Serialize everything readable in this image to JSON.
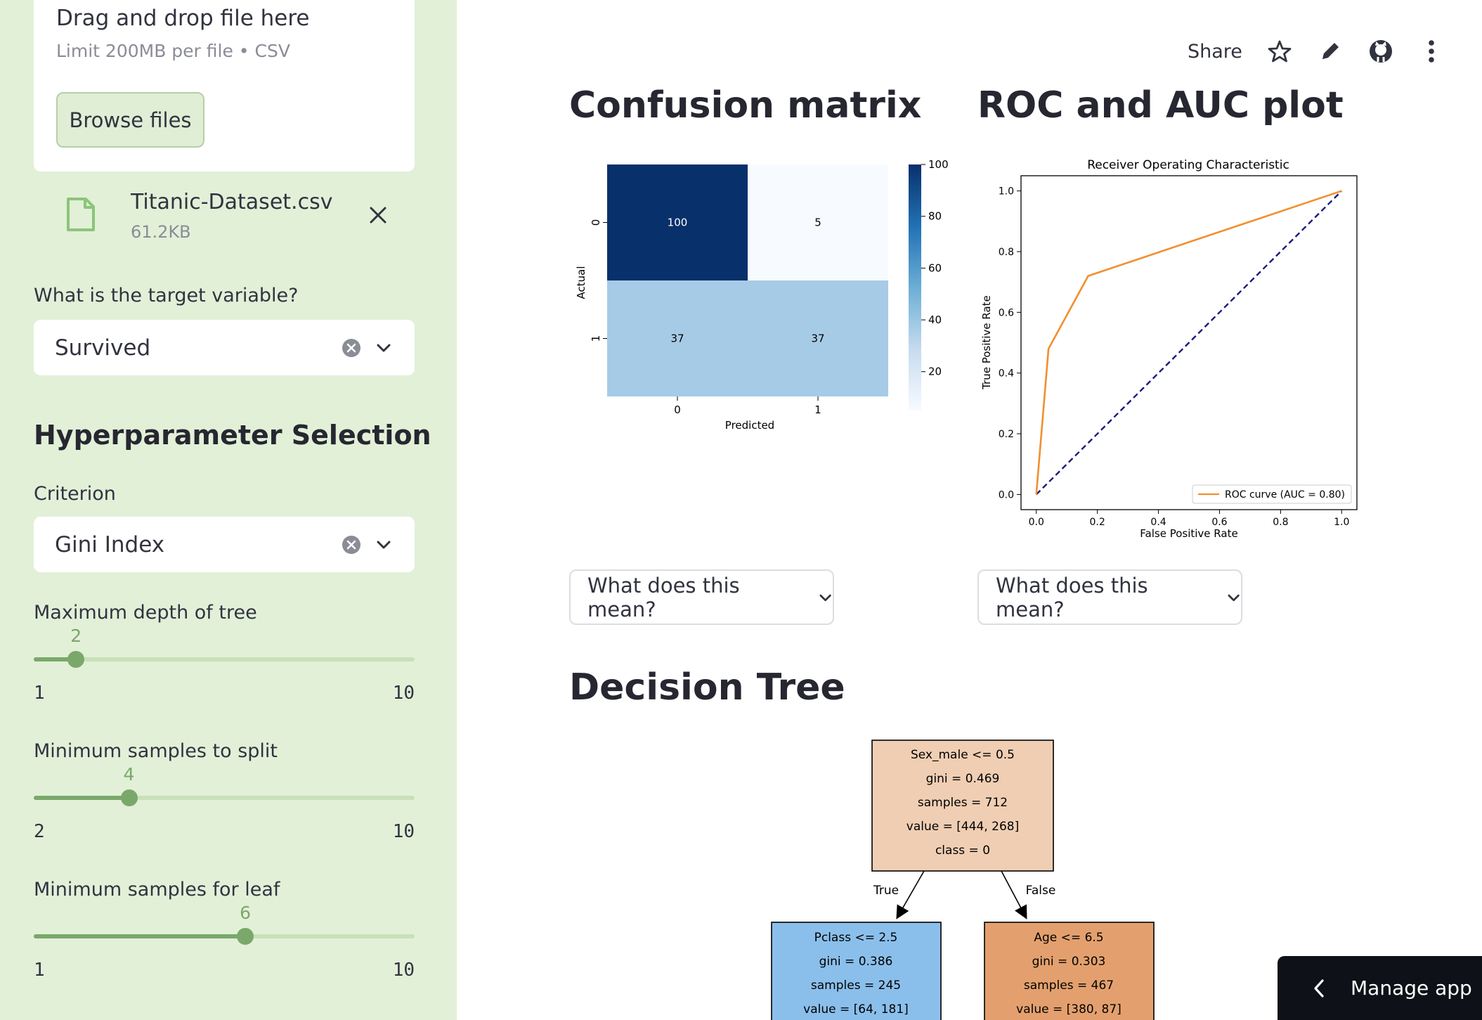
{
  "sidebar": {
    "uploader": {
      "title": "Drag and drop file here",
      "limit": "Limit 200MB per file • CSV",
      "browse_label": "Browse files"
    },
    "file": {
      "name": "Titanic-Dataset.csv",
      "size": "61.2KB"
    },
    "target": {
      "label": "What is the target variable?",
      "value": "Survived"
    },
    "section_title": "Hyperparameter Selection",
    "criterion": {
      "label": "Criterion",
      "value": "Gini Index"
    },
    "sliders": [
      {
        "label": "Maximum depth of tree",
        "value": 2,
        "min": 1,
        "max": 10
      },
      {
        "label": "Minimum samples to split",
        "value": 4,
        "min": 2,
        "max": 10
      },
      {
        "label": "Minimum samples for leaf",
        "value": 6,
        "min": 1,
        "max": 10
      }
    ]
  },
  "toolbar": {
    "share_label": "Share",
    "icons": [
      "star-icon",
      "pencil-icon",
      "github-icon",
      "more-vertical-icon"
    ]
  },
  "main": {
    "confusion_heading": "Confusion matrix",
    "roc_heading": "ROC and AUC plot",
    "expander_label": "What does this mean?",
    "tree_heading": "Decision Tree",
    "manage_app_label": "Manage app"
  },
  "colors": {
    "sidebar_bg": "#e2f0d8",
    "slider_accent": "#7aa86a",
    "roc_curve": "#f0902e",
    "diagonal": "#1a1a80"
  },
  "chart_data": [
    {
      "type": "heatmap",
      "x_categories": [
        "0",
        "1"
      ],
      "y_categories": [
        "0",
        "1"
      ],
      "values": [
        [
          100,
          5
        ],
        [
          37,
          37
        ]
      ],
      "xlabel": "Predicted",
      "ylabel": "Actual",
      "colorbar_ticks": [
        20,
        40,
        60,
        80,
        100
      ],
      "colormap": "Blues"
    },
    {
      "type": "line",
      "title": "Receiver Operating Characteristic",
      "xlabel": "False Positive Rate",
      "ylabel": "True Positive Rate",
      "xlim": [
        0,
        1
      ],
      "ylim": [
        0,
        1
      ],
      "x_ticks": [
        "0.0",
        "0.2",
        "0.4",
        "0.6",
        "0.8",
        "1.0"
      ],
      "y_ticks": [
        "0.0",
        "0.2",
        "0.4",
        "0.6",
        "0.8",
        "1.0"
      ],
      "legend_position": "lower-right",
      "series": [
        {
          "name": "ROC curve (AUC = 0.80)",
          "x": [
            0,
            0.04,
            0.17,
            1.0
          ],
          "y": [
            0,
            0.48,
            0.72,
            1.0
          ]
        },
        {
          "x": [
            0,
            1
          ],
          "y": [
            0,
            1
          ],
          "style": "dashed"
        }
      ]
    }
  ],
  "tree": {
    "root": [
      "Sex_male <= 0.5",
      "gini = 0.469",
      "samples = 712",
      "value = [444, 268]",
      "class = 0"
    ],
    "left": [
      "Pclass <= 2.5",
      "gini = 0.386",
      "samples = 245",
      "value = [64, 181]"
    ],
    "right": [
      "Age <= 6.5",
      "gini = 0.303",
      "samples = 467",
      "value = [380, 87]"
    ],
    "edge_true": "True",
    "edge_false": "False"
  }
}
